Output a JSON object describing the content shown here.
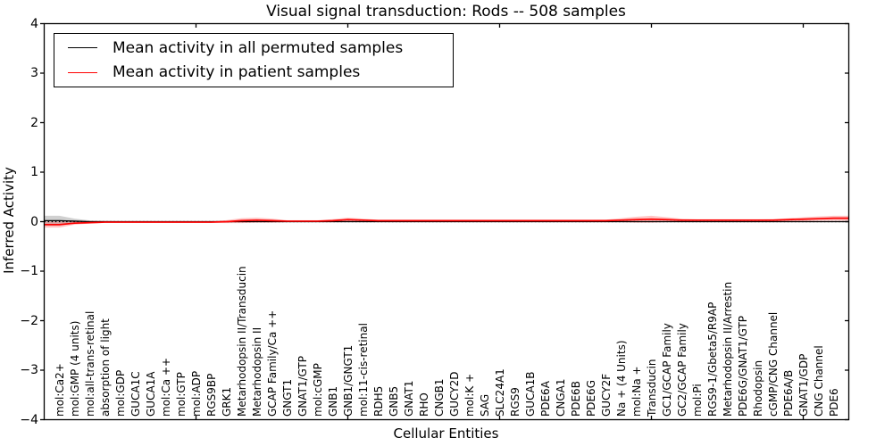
{
  "figure": {
    "title": "Visual signal transduction: Rods -- 508 samples",
    "xlabel": "Cellular Entities",
    "ylabel": "Inferred Activity"
  },
  "legend": {
    "items": [
      {
        "label": "Mean activity in all permuted samples",
        "color": "#000000"
      },
      {
        "label": "Mean activity in patient samples",
        "color": "#ff0000"
      }
    ]
  },
  "chart_data": {
    "type": "line",
    "title": "Visual signal transduction: Rods -- 508 samples",
    "xlabel": "Cellular Entities",
    "ylabel": "Inferred Activity",
    "ylim": [
      -4,
      4
    ],
    "yticks": [
      4,
      3,
      2,
      1,
      0,
      -1,
      -2,
      -3,
      -4
    ],
    "ytick_labels": [
      "4",
      "3",
      "2",
      "1",
      "0",
      "−1",
      "−2",
      "−3",
      "−4"
    ],
    "x_major_ticks": [
      10,
      20,
      30,
      40,
      50
    ],
    "grid": false,
    "legend_position": "upper left",
    "zero_line_style": "dotted",
    "categories": [
      "mol:Ca2+",
      "mol:GMP (4 units)",
      "mol:all-trans-retinal",
      "absorption of light",
      "mol:GDP",
      "GUCA1C",
      "GUCA1A",
      "mol:Ca ++",
      "mol:GTP",
      "mol:ADP",
      "RGS9BP",
      "GRK1",
      "Metarhodopsin II/Transducin",
      "Metarhodopsin II",
      "GCAP Family/Ca ++",
      "GNGT1",
      "GNAT1/GTP",
      "mol:cGMP",
      "GNB1",
      "GNB1/GNGT1",
      "mol:11-cis-retinal",
      "RDH5",
      "GNB5",
      "GNAT1",
      "RHO",
      "CNGB1",
      "GUCY2D",
      "mol:K +",
      "SAG",
      "SLC24A1",
      "RGS9",
      "GUCA1B",
      "PDE6A",
      "CNGA1",
      "PDE6B",
      "PDE6G",
      "GUCY2F",
      "Na + (4 Units)",
      "mol:Na +",
      "Transducin",
      "GC1/GCAP Family",
      "GC2/GCAP Family",
      "mol:Pi",
      "RGS9-1/Gbeta5/R9AP",
      "Metarhodopsin II/Arrestin",
      "PDE6G/GNAT1/GTP",
      "Rhodopsin",
      "cGMP/CNG Channel",
      "PDE6A/B",
      "GNAT1/GDP",
      "CNG Channel",
      "PDE6"
    ],
    "series": [
      {
        "name": "Mean activity in all permuted samples",
        "color": "#000000",
        "values": [
          0.02,
          0.01,
          0,
          0,
          0,
          0,
          0,
          0,
          0,
          0,
          0,
          0,
          0,
          0,
          0,
          0,
          0,
          0,
          0,
          0,
          0,
          0,
          0,
          0,
          0,
          0,
          0,
          0,
          0,
          0,
          0,
          0,
          0,
          0,
          0,
          0,
          0,
          0,
          0,
          0,
          0,
          0,
          0,
          0,
          0,
          0,
          0,
          0,
          0,
          0,
          0,
          0
        ],
        "band_half_width": [
          0.1,
          0.05,
          0.025,
          0.015,
          0.012,
          0.012,
          0.012,
          0.012,
          0.012,
          0.012,
          0.012,
          0.012,
          0.012,
          0.012,
          0.012,
          0.012,
          0.012,
          0.012,
          0.012,
          0.012,
          0.012,
          0.012,
          0.012,
          0.012,
          0.012,
          0.012,
          0.012,
          0.012,
          0.012,
          0.012,
          0.012,
          0.012,
          0.012,
          0.012,
          0.012,
          0.012,
          0.012,
          0.012,
          0.012,
          0.012,
          0.012,
          0.012,
          0.012,
          0.012,
          0.012,
          0.012,
          0.012,
          0.012,
          0.012,
          0.012,
          0.012,
          0.012
        ],
        "band_color": "rgba(120,120,120,0.35)"
      },
      {
        "name": "Mean activity in patient samples",
        "color": "#ff0000",
        "values": [
          -0.06,
          -0.03,
          -0.02,
          -0.01,
          -0.01,
          -0.01,
          -0.01,
          -0.01,
          -0.01,
          -0.01,
          -0.01,
          0,
          0.02,
          0.03,
          0.02,
          0.01,
          0.01,
          0.01,
          0.02,
          0.04,
          0.03,
          0.02,
          0.02,
          0.02,
          0.02,
          0.02,
          0.02,
          0.02,
          0.02,
          0.02,
          0.02,
          0.02,
          0.02,
          0.02,
          0.02,
          0.02,
          0.02,
          0.03,
          0.04,
          0.05,
          0.04,
          0.03,
          0.03,
          0.03,
          0.03,
          0.03,
          0.03,
          0.03,
          0.04,
          0.05,
          0.06,
          0.07
        ],
        "band_half_width": [
          0.06,
          0.03,
          0.018,
          0.015,
          0.015,
          0.015,
          0.015,
          0.015,
          0.015,
          0.015,
          0.015,
          0.03,
          0.05,
          0.05,
          0.04,
          0.02,
          0.02,
          0.02,
          0.03,
          0.04,
          0.03,
          0.018,
          0.018,
          0.018,
          0.018,
          0.018,
          0.018,
          0.018,
          0.018,
          0.018,
          0.018,
          0.018,
          0.018,
          0.018,
          0.018,
          0.018,
          0.02,
          0.04,
          0.06,
          0.07,
          0.05,
          0.03,
          0.02,
          0.02,
          0.02,
          0.02,
          0.02,
          0.025,
          0.03,
          0.04,
          0.045,
          0.05
        ],
        "band_color": "rgba(255,60,60,0.30)"
      }
    ]
  }
}
